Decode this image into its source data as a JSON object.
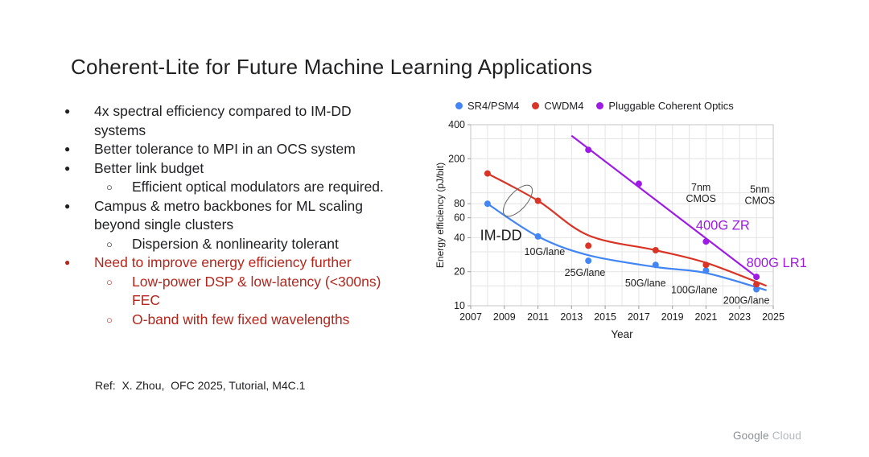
{
  "slide": {
    "title": "Coherent-Lite for Future Machine Learning Applications",
    "reference": "Ref:  X. Zhou,  OFC 2025, Tutorial, M4C.1",
    "footer": {
      "google": "Google",
      "cloud": "Cloud"
    }
  },
  "bullets": [
    {
      "level": 1,
      "color": "dark",
      "text": "4x spectral efficiency compared to IM-DD\nsystems"
    },
    {
      "level": 1,
      "color": "dark",
      "text": "Better tolerance to MPI in an OCS system"
    },
    {
      "level": 1,
      "color": "dark",
      "text": "Better link budget"
    },
    {
      "level": 2,
      "color": "dark",
      "text": "Efficient optical modulators are required."
    },
    {
      "level": 1,
      "color": "dark",
      "text": "Campus & metro backbones for ML scaling\nbeyond single clusters"
    },
    {
      "level": 2,
      "color": "dark",
      "text": "Dispersion & nonlinearity tolerant"
    },
    {
      "level": 1,
      "color": "red",
      "text": "Need to improve energy efficiency further"
    },
    {
      "level": 2,
      "color": "red",
      "text": "Low-power DSP & low-latency (<300ns)\nFEC"
    },
    {
      "level": 2,
      "color": "red",
      "text": "O-band with few fixed wavelengths"
    }
  ],
  "colors": {
    "dark_text": "#202124",
    "red_text": "#b3261c",
    "blue_series": "#4285f4",
    "red_series": "#d93425",
    "purple_series": "#9d1be3",
    "gridline": "#e4e4e4",
    "frame": "#c4c4c4"
  },
  "chart_data": {
    "type": "scatter",
    "title": "",
    "xlabel": "Year",
    "ylabel": "Energy efficiency (pJ/bit)",
    "y_scale": "log",
    "xlim": [
      2007,
      2025
    ],
    "ylim": [
      10,
      400
    ],
    "x_ticks": [
      2007,
      2009,
      2011,
      2013,
      2015,
      2017,
      2019,
      2021,
      2023,
      2025
    ],
    "y_ticks": [
      400,
      200,
      80,
      60,
      40,
      20,
      10
    ],
    "y_gridlines": [
      300,
      200,
      100,
      80,
      60,
      40,
      30,
      20,
      15,
      10
    ],
    "grid": true,
    "legend_position": "top",
    "series": [
      {
        "name": "SR4/PSM4",
        "color": "#4285f4",
        "points": [
          [
            2008,
            80
          ],
          [
            2011,
            41
          ],
          [
            2014,
            25
          ],
          [
            2018,
            23
          ],
          [
            2021,
            20.5
          ],
          [
            2024,
            14
          ]
        ],
        "trend": [
          [
            2008,
            80
          ],
          [
            2011,
            41
          ],
          [
            2014,
            28
          ],
          [
            2018,
            22
          ],
          [
            2021,
            19.5
          ],
          [
            2024.6,
            13.7
          ]
        ]
      },
      {
        "name": "CWDM4",
        "color": "#d93425",
        "points": [
          [
            2008,
            148
          ],
          [
            2011,
            85
          ],
          [
            2014,
            34
          ],
          [
            2018,
            31
          ],
          [
            2021,
            23
          ],
          [
            2024,
            15.5
          ]
        ],
        "trend": [
          [
            2008,
            148
          ],
          [
            2011,
            85
          ],
          [
            2014,
            42
          ],
          [
            2018,
            31
          ],
          [
            2021,
            24
          ],
          [
            2024.6,
            15
          ]
        ]
      },
      {
        "name": "Pluggable Coherent Optics",
        "color": "#9d1be3",
        "points": [
          [
            2014,
            240
          ],
          [
            2017,
            120
          ],
          [
            2021,
            37
          ],
          [
            2024,
            18
          ]
        ],
        "trend": [
          [
            2013,
            320
          ],
          [
            2024,
            18
          ]
        ]
      }
    ],
    "annotations": [
      {
        "text": "IM-DD",
        "x": 2008.8,
        "y": 38,
        "color": "#1c1c1c",
        "size": 18,
        "weight": 500,
        "anchor": "middle"
      },
      {
        "text": "10G/lane",
        "x": 2011.4,
        "y": 28,
        "color": "#1c1c1c",
        "size": 12.5,
        "anchor": "middle"
      },
      {
        "text": "25G/lane",
        "x": 2013.8,
        "y": 18.3,
        "color": "#1c1c1c",
        "size": 12.5,
        "anchor": "middle"
      },
      {
        "text": "50G/lane",
        "x": 2017.4,
        "y": 14.8,
        "color": "#1c1c1c",
        "size": 12.5,
        "anchor": "middle"
      },
      {
        "text": "100G/lane",
        "x": 2020.3,
        "y": 12.9,
        "color": "#1c1c1c",
        "size": 12.5,
        "anchor": "middle"
      },
      {
        "text": "200G/lane",
        "x": 2023.4,
        "y": 10.4,
        "color": "#1c1c1c",
        "size": 12.5,
        "anchor": "middle"
      },
      {
        "lines": [
          "7nm",
          "CMOS"
        ],
        "x": 2020.7,
        "y": 104,
        "color": "#1c1c1c",
        "size": 12.5,
        "anchor": "middle"
      },
      {
        "lines": [
          "5nm",
          "CMOS"
        ],
        "x": 2024.2,
        "y": 100,
        "color": "#1c1c1c",
        "size": 12.5,
        "anchor": "middle"
      },
      {
        "text": "400G ZR",
        "x": 2022.0,
        "y": 47,
        "color": "#9d1be3",
        "size": 16.5,
        "weight": 500,
        "anchor": "middle"
      },
      {
        "text": "800G LR1",
        "x": 2025.2,
        "y": 22,
        "color": "#9d1be3",
        "size": 16.5,
        "weight": 500,
        "anchor": "middle"
      }
    ],
    "lasso": {
      "x": 2009.8,
      "y": 85,
      "rx": 24,
      "ry": 11,
      "rotate": -48,
      "color": "#666666"
    }
  }
}
